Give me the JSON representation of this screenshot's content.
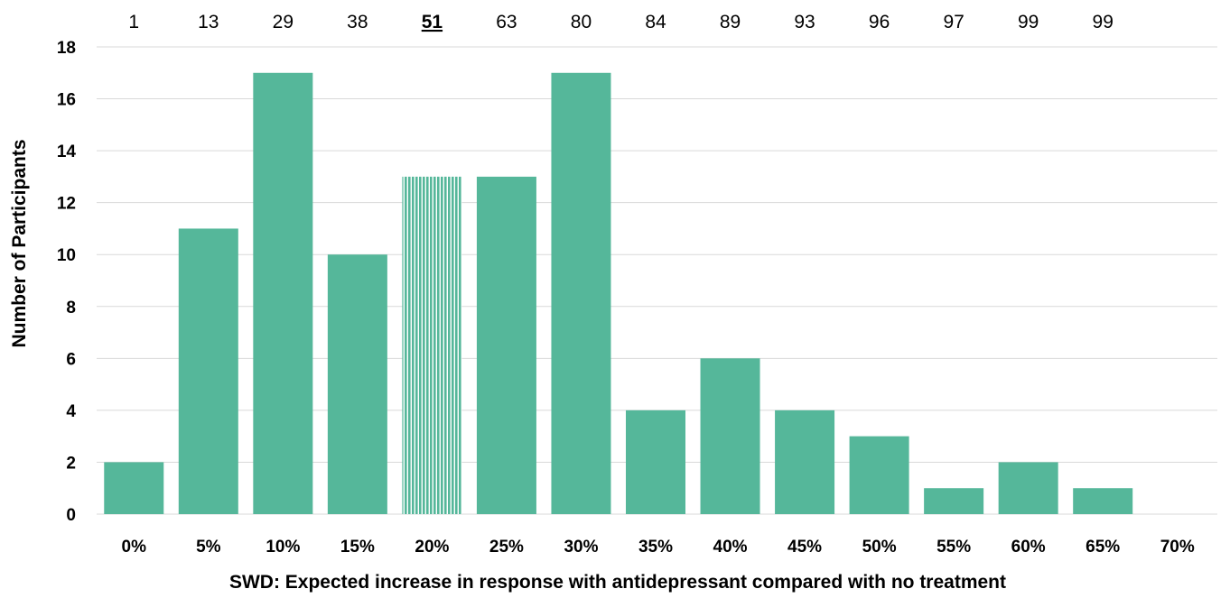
{
  "chart_data": {
    "type": "bar",
    "title": "",
    "xlabel": "SWD: Expected increase in response with antidepressant compared with no treatment",
    "ylabel": "Number of Participants",
    "categories": [
      "0%",
      "5%",
      "10%",
      "15%",
      "20%",
      "25%",
      "30%",
      "35%",
      "40%",
      "45%",
      "50%",
      "55%",
      "60%",
      "65%",
      "70%"
    ],
    "values": [
      2,
      11,
      17,
      10,
      13,
      13,
      17,
      4,
      6,
      4,
      3,
      1,
      2,
      1,
      0
    ],
    "cumulative_labels": [
      "1",
      "13",
      "29",
      "38",
      "51",
      "63",
      "80",
      "84",
      "89",
      "93",
      "96",
      "97",
      "99",
      "99"
    ],
    "highlight_index": 4,
    "ylim": [
      0,
      18
    ],
    "yticks": [
      "0",
      "2",
      "4",
      "6",
      "8",
      "10",
      "12",
      "14",
      "16",
      "18"
    ],
    "grid": true,
    "legend": "none",
    "bar_color": "#55b79a",
    "highlight_pattern": "vertical-stripes"
  }
}
